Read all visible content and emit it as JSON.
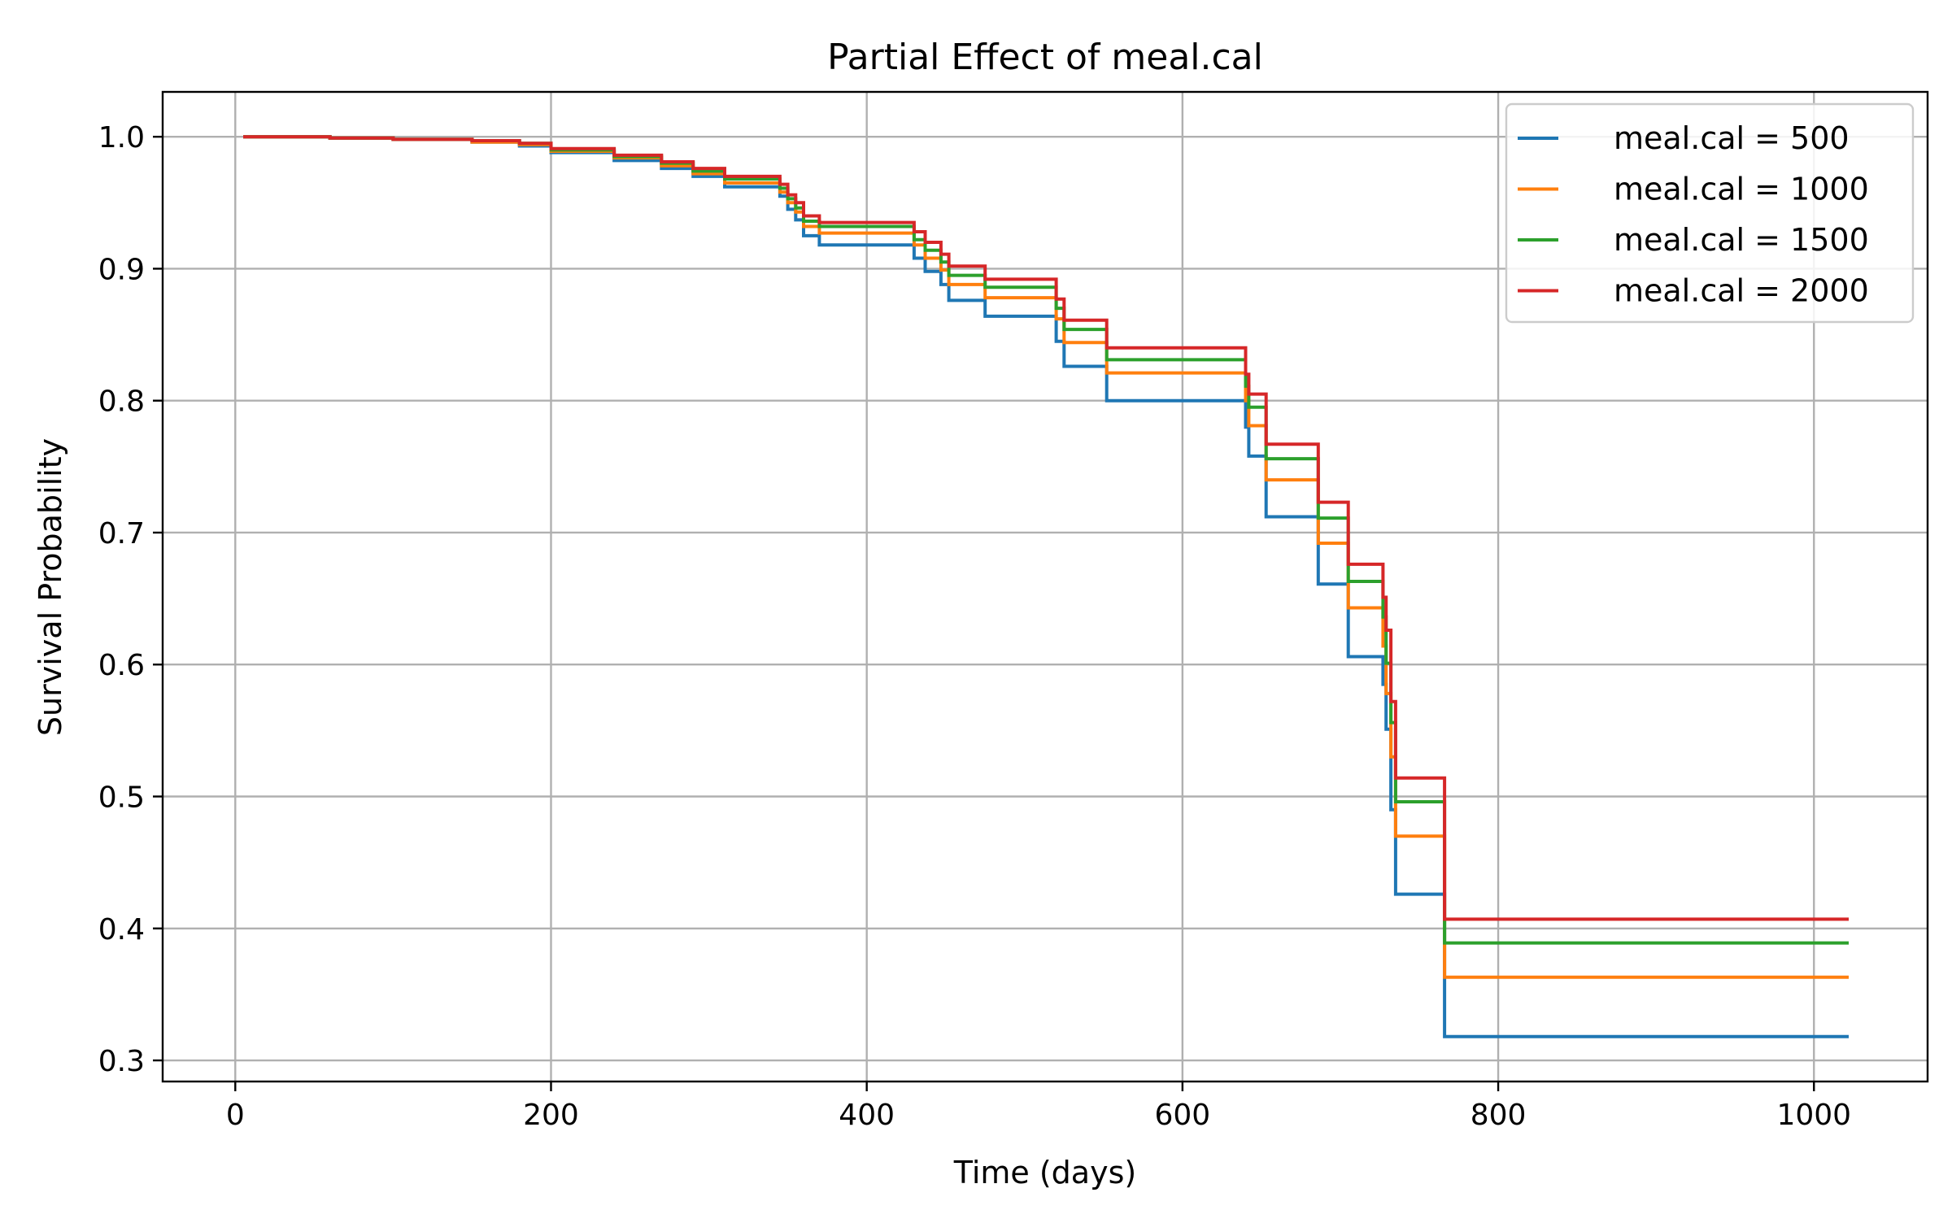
{
  "chart_data": {
    "type": "line",
    "step": true,
    "title": "Partial Effect of meal.cal",
    "xlabel": "Time (days)",
    "ylabel": "Survival Probability",
    "xlim": [
      -46,
      1072
    ],
    "ylim": [
      0.284,
      1.034
    ],
    "xticks": [
      0,
      200,
      400,
      600,
      800,
      1000
    ],
    "xtick_labels": [
      "0",
      "200",
      "400",
      "600",
      "800",
      "1000"
    ],
    "yticks": [
      0.3,
      0.4,
      0.5,
      0.6,
      0.7,
      0.8,
      0.9,
      1.0
    ],
    "ytick_labels": [
      "0.3",
      "0.4",
      "0.5",
      "0.6",
      "0.7",
      "0.8",
      "0.9",
      "1.0"
    ],
    "grid": true,
    "legend_position": "top-right",
    "x": [
      5,
      60,
      100,
      150,
      180,
      200,
      240,
      270,
      290,
      310,
      345,
      350,
      355,
      360,
      370,
      430,
      437,
      447,
      452,
      475,
      520,
      525,
      552,
      640,
      642,
      653,
      686,
      705,
      727,
      729,
      732,
      735,
      766,
      1022
    ],
    "series": [
      {
        "name": "meal.cal = 500",
        "color": "#1f77b4",
        "values": [
          1.0,
          0.999,
          0.998,
          0.996,
          0.993,
          0.988,
          0.982,
          0.976,
          0.97,
          0.962,
          0.955,
          0.945,
          0.937,
          0.925,
          0.918,
          0.908,
          0.898,
          0.888,
          0.876,
          0.864,
          0.845,
          0.826,
          0.8,
          0.78,
          0.758,
          0.712,
          0.661,
          0.606,
          0.585,
          0.551,
          0.49,
          0.426,
          0.318,
          0.318
        ]
      },
      {
        "name": "meal.cal = 1000",
        "color": "#ff7f0e",
        "values": [
          1.0,
          0.999,
          0.998,
          0.996,
          0.994,
          0.989,
          0.984,
          0.978,
          0.972,
          0.965,
          0.958,
          0.95,
          0.943,
          0.932,
          0.927,
          0.918,
          0.908,
          0.899,
          0.888,
          0.878,
          0.862,
          0.844,
          0.821,
          0.8,
          0.781,
          0.74,
          0.692,
          0.643,
          0.614,
          0.578,
          0.53,
          0.47,
          0.363,
          0.363
        ]
      },
      {
        "name": "meal.cal = 1500",
        "color": "#2ca02c",
        "values": [
          1.0,
          0.999,
          0.998,
          0.997,
          0.995,
          0.99,
          0.985,
          0.98,
          0.974,
          0.968,
          0.961,
          0.953,
          0.946,
          0.936,
          0.932,
          0.922,
          0.914,
          0.905,
          0.895,
          0.886,
          0.87,
          0.854,
          0.831,
          0.811,
          0.795,
          0.756,
          0.711,
          0.663,
          0.636,
          0.601,
          0.556,
          0.496,
          0.389,
          0.389
        ]
      },
      {
        "name": "meal.cal = 2000",
        "color": "#d62728",
        "values": [
          1.0,
          0.999,
          0.998,
          0.997,
          0.995,
          0.991,
          0.986,
          0.981,
          0.976,
          0.97,
          0.964,
          0.956,
          0.95,
          0.94,
          0.935,
          0.928,
          0.92,
          0.911,
          0.902,
          0.892,
          0.877,
          0.861,
          0.84,
          0.82,
          0.805,
          0.767,
          0.723,
          0.676,
          0.651,
          0.626,
          0.572,
          0.514,
          0.407,
          0.407
        ]
      }
    ]
  }
}
